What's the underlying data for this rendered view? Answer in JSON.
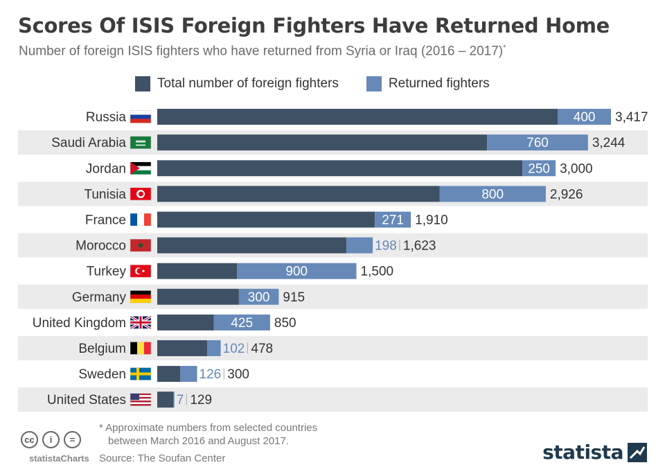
{
  "header": {
    "title": "Scores Of ISIS Foreign Fighters Have Returned Home",
    "subtitle": "Number of foreign ISIS fighters who have returned from Syria or Iraq (2016 – 2017)",
    "subtitle_mark": "*"
  },
  "legend": {
    "total_label": "Total number of foreign fighters",
    "returned_label": "Returned fighters"
  },
  "colors": {
    "total": "#3f5165",
    "returned": "#6689b8",
    "stripe": "#ebebeb",
    "label": "#333333"
  },
  "chart_data": {
    "type": "bar",
    "orientation": "horizontal",
    "categories": [
      "Russia",
      "Saudi Arabia",
      "Jordan",
      "Tunisia",
      "France",
      "Morocco",
      "Turkey",
      "Germany",
      "United Kingdom",
      "Belgium",
      "Sweden",
      "United States"
    ],
    "series": [
      {
        "name": "Total number of foreign fighters",
        "values": [
          3417,
          3244,
          3000,
          2926,
          1910,
          1623,
          1500,
          915,
          850,
          478,
          300,
          129
        ]
      },
      {
        "name": "Returned fighters",
        "values": [
          400,
          760,
          250,
          800,
          271,
          198,
          900,
          300,
          425,
          102,
          126,
          7
        ]
      }
    ],
    "value_labels_total": [
      "3,417",
      "3,244",
      "3,000",
      "2,926",
      "1,910",
      "1,623",
      "1,500",
      "915",
      "850",
      "478",
      "300",
      "129"
    ],
    "value_labels_returned": [
      "400",
      "760",
      "250",
      "800",
      "271",
      "198",
      "900",
      "300",
      "425",
      "102",
      "126",
      "7"
    ],
    "flags": [
      "russia-flag-icon",
      "saudi-arabia-flag-icon",
      "jordan-flag-icon",
      "tunisia-flag-icon",
      "france-flag-icon",
      "morocco-flag-icon",
      "turkey-flag-icon",
      "germany-flag-icon",
      "uk-flag-icon",
      "belgium-flag-icon",
      "sweden-flag-icon",
      "usa-flag-icon"
    ],
    "xlim": [
      0,
      3417
    ],
    "legend_position": "top"
  },
  "footer": {
    "footnote_line1": "* Approximate numbers from selected countries",
    "footnote_line2": "between March 2016 and August 2017.",
    "source": "Source: The Soufan Center",
    "cc_label": "statistaCharts",
    "brand": "statista"
  }
}
